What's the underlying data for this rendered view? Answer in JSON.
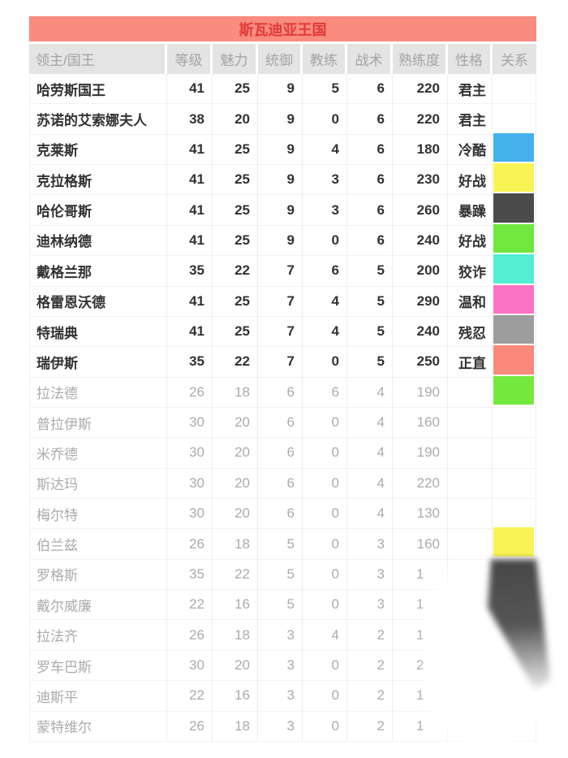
{
  "chart_data": {
    "type": "table",
    "title": "斯瓦迪亚王国",
    "columns": [
      "领主/国王",
      "等级",
      "魅力",
      "统御",
      "教练",
      "战术",
      "熟练度",
      "性格",
      "关系"
    ],
    "rows": [
      {
        "name": "哈劳斯国王",
        "stats": [
          "41",
          "25",
          "9",
          "5",
          "6",
          "220"
        ],
        "personality": "君主",
        "relation": "",
        "muted": false,
        "cut": false
      },
      {
        "name": "苏诺的艾索娜夫人",
        "stats": [
          "38",
          "20",
          "9",
          "0",
          "6",
          "220"
        ],
        "personality": "君主",
        "relation": "",
        "muted": false,
        "cut": false
      },
      {
        "name": "克莱斯",
        "stats": [
          "41",
          "25",
          "9",
          "4",
          "6",
          "180"
        ],
        "personality": "冷酷",
        "relation": "#45b1ee",
        "muted": false,
        "cut": false
      },
      {
        "name": "克拉格斯",
        "stats": [
          "41",
          "25",
          "9",
          "3",
          "6",
          "230"
        ],
        "personality": "好战",
        "relation": "#f8f456",
        "muted": false,
        "cut": false
      },
      {
        "name": "哈伦哥斯",
        "stats": [
          "41",
          "25",
          "9",
          "3",
          "6",
          "260"
        ],
        "personality": "暴躁",
        "relation": "#4b4b4b",
        "muted": false,
        "cut": false
      },
      {
        "name": "迪林纳德",
        "stats": [
          "41",
          "25",
          "9",
          "0",
          "6",
          "240"
        ],
        "personality": "好战",
        "relation": "#6fe73d",
        "muted": false,
        "cut": false
      },
      {
        "name": "戴格兰那",
        "stats": [
          "35",
          "22",
          "7",
          "6",
          "5",
          "200"
        ],
        "personality": "狡诈",
        "relation": "#52efd3",
        "muted": false,
        "cut": false
      },
      {
        "name": "格雷恩沃德",
        "stats": [
          "41",
          "25",
          "7",
          "4",
          "5",
          "290"
        ],
        "personality": "温和",
        "relation": "#fb73c3",
        "muted": false,
        "cut": false
      },
      {
        "name": "特瑞典",
        "stats": [
          "41",
          "25",
          "7",
          "4",
          "5",
          "240"
        ],
        "personality": "残忍",
        "relation": "#9d9d9d",
        "muted": false,
        "cut": false
      },
      {
        "name": "瑞伊斯",
        "stats": [
          "35",
          "22",
          "7",
          "0",
          "5",
          "250"
        ],
        "personality": "正直",
        "relation": "#f9897a",
        "muted": false,
        "cut": false
      },
      {
        "name": "拉法德",
        "stats": [
          "26",
          "18",
          "6",
          "6",
          "4",
          "190"
        ],
        "personality": "",
        "relation": "#76e93e",
        "muted": true,
        "cut": false
      },
      {
        "name": "普拉伊斯",
        "stats": [
          "30",
          "20",
          "6",
          "0",
          "4",
          "160"
        ],
        "personality": "",
        "relation": "",
        "muted": true,
        "cut": false
      },
      {
        "name": "米乔德",
        "stats": [
          "30",
          "20",
          "6",
          "0",
          "4",
          "190"
        ],
        "personality": "",
        "relation": "",
        "muted": true,
        "cut": false
      },
      {
        "name": "斯达玛",
        "stats": [
          "30",
          "20",
          "6",
          "0",
          "4",
          "220"
        ],
        "personality": "",
        "relation": "",
        "muted": true,
        "cut": false
      },
      {
        "name": "梅尔特",
        "stats": [
          "30",
          "20",
          "6",
          "0",
          "4",
          "130"
        ],
        "personality": "",
        "relation": "",
        "muted": true,
        "cut": false
      },
      {
        "name": "伯兰兹",
        "stats": [
          "26",
          "18",
          "5",
          "0",
          "3",
          "160"
        ],
        "personality": "",
        "relation": "#f8f456",
        "muted": true,
        "cut": false
      },
      {
        "name": "罗格斯",
        "stats": [
          "35",
          "22",
          "5",
          "0",
          "3",
          "1"
        ],
        "personality": "",
        "relation": "",
        "muted": true,
        "cut": true
      },
      {
        "name": "戴尔威廉",
        "stats": [
          "22",
          "16",
          "5",
          "0",
          "3",
          "1"
        ],
        "personality": "",
        "relation": "",
        "muted": true,
        "cut": true
      },
      {
        "name": "拉法齐",
        "stats": [
          "26",
          "18",
          "3",
          "4",
          "2",
          "1"
        ],
        "personality": "",
        "relation": "",
        "muted": true,
        "cut": true
      },
      {
        "name": "罗车巴斯",
        "stats": [
          "30",
          "20",
          "3",
          "0",
          "2",
          "2"
        ],
        "personality": "",
        "relation": "",
        "muted": true,
        "cut": true
      },
      {
        "name": "迪斯平",
        "stats": [
          "22",
          "16",
          "3",
          "0",
          "2",
          "1"
        ],
        "personality": "",
        "relation": "",
        "muted": true,
        "cut": true
      },
      {
        "name": "蒙特维尔",
        "stats": [
          "26",
          "18",
          "3",
          "0",
          "2",
          "1"
        ],
        "personality": "",
        "relation": "",
        "muted": true,
        "cut": true
      }
    ]
  },
  "colors": {
    "title_bg": "#f98b7f",
    "title_text": "#e03a38",
    "header_bg": "#e4e4e4",
    "header_text": "#a3a3a3",
    "text_dark": "#323232",
    "text_muted": "#ababab",
    "smudge_dark": "#4b4b4b"
  }
}
